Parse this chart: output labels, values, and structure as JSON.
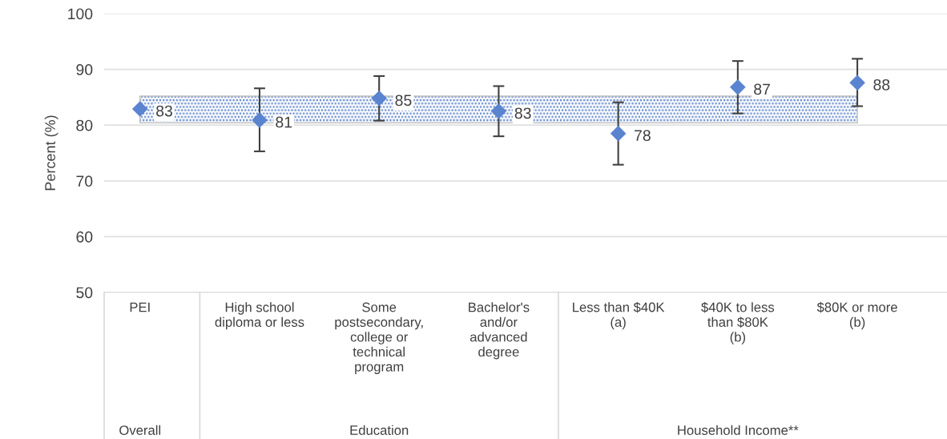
{
  "chart_data": {
    "type": "scatter",
    "ylabel": "Percent (%)",
    "categories": [
      "PEI",
      "High school\ndiploma or less",
      "Some\npostsecondary,\ncollege or\ntechnical\nprogram",
      "Bachelor's\nand/or\nadvanced\ndegree",
      "Less than $40K\n(a)",
      "$40K to less\nthan $80K\n(b)",
      "$80K or more\n(b)"
    ],
    "series": [
      {
        "color": "#5b84d0",
        "values": [
          82.9,
          80.9,
          84.8,
          82.5,
          78.5,
          86.8,
          87.6
        ],
        "errors": [
          null,
          [
            75.3,
            86.6
          ],
          [
            80.8,
            88.8
          ],
          [
            78.0,
            87.0
          ],
          [
            72.9,
            84.1
          ],
          [
            82.1,
            91.5
          ],
          [
            83.4,
            91.9
          ]
        ],
        "value_labels": [
          "83",
          "81",
          "85",
          "83",
          "78",
          "87",
          "88"
        ]
      }
    ],
    "marker": "diamond",
    "ylim": [
      50,
      100
    ],
    "yticks": [
      50,
      60,
      70,
      80,
      90,
      100
    ],
    "grid": "y",
    "bands": [
      {
        "axis": "y",
        "from": 80.4,
        "to": 85.2,
        "color": "#4472c4"
      }
    ],
    "annotations": [
      "Overall",
      "Education",
      "Household Income**"
    ]
  }
}
